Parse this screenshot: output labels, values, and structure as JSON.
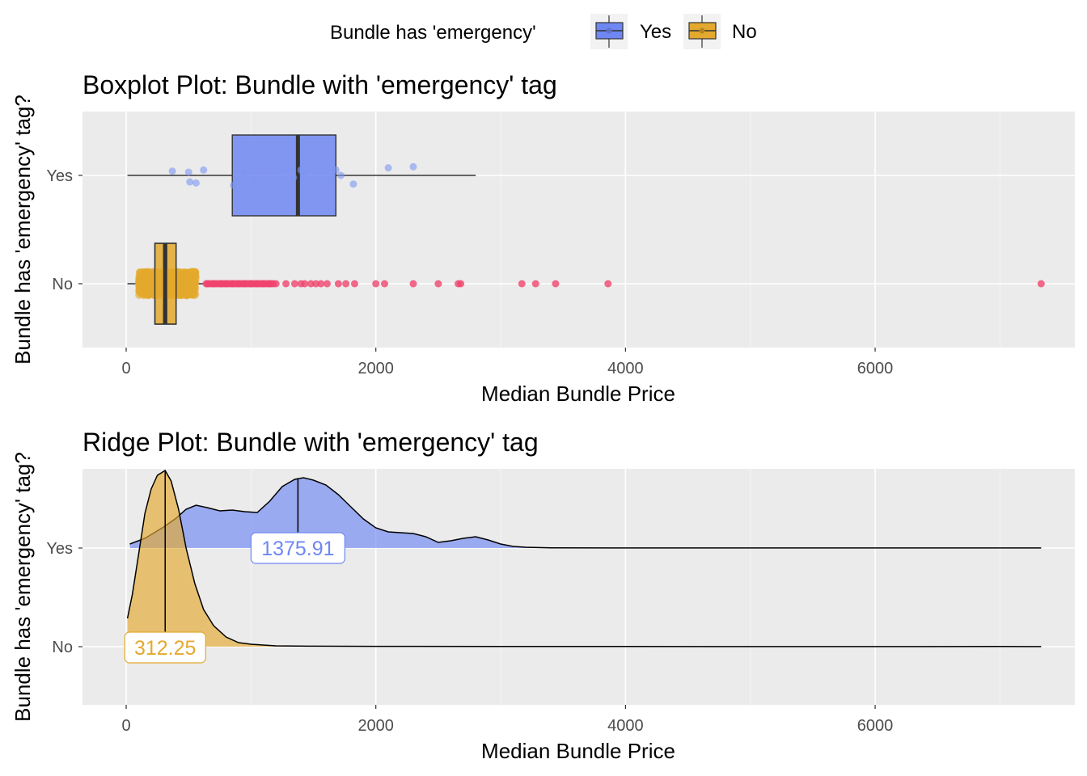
{
  "legend": {
    "title": "Bundle has 'emergency'",
    "position": "top",
    "entries": [
      {
        "label": "Yes",
        "color": "#6F87F2"
      },
      {
        "label": "No",
        "color": "#E3A92E"
      }
    ]
  },
  "colors": {
    "yes_fill": "#6F87F2",
    "no_fill": "#E3A92E",
    "yes_point": "#7D96F2",
    "no_point": "#E3A92E",
    "outlier": "#F0456D",
    "panel_bg": "#EBEBEB",
    "grid": "#FFFFFF"
  },
  "chart_data": [
    {
      "type": "boxplot",
      "title": "Boxplot Plot: Bundle with 'emergency' tag",
      "xlabel": "Median Bundle Price",
      "ylabel": "Bundle has 'emergency' tag?",
      "xlim": [
        -350,
        7600
      ],
      "x_ticks": [
        0,
        2000,
        4000,
        6000
      ],
      "x_tick_labels": [
        "0",
        "2000",
        "4000",
        "6000"
      ],
      "categories": [
        "Yes",
        "No"
      ],
      "grid": true,
      "boxes": [
        {
          "name": "Yes",
          "whisker_low": 10,
          "q1": 850,
          "median": 1375.91,
          "q3": 1680,
          "whisker_high": 2800,
          "jitter_points": [
            [
              370,
              0.04
            ],
            [
              500,
              0.03
            ],
            [
              620,
              0.05
            ],
            [
              510,
              -0.06
            ],
            [
              560,
              -0.07
            ],
            [
              860,
              -0.09
            ],
            [
              950,
              0.02
            ],
            [
              1020,
              -0.04
            ],
            [
              1250,
              0.06
            ],
            [
              1340,
              -0.02
            ],
            [
              1400,
              0.05
            ],
            [
              1420,
              0.01
            ],
            [
              1640,
              -0.05
            ],
            [
              1680,
              0.05
            ],
            [
              1720,
              0.0
            ],
            [
              1820,
              -0.08
            ],
            [
              2100,
              0.07
            ],
            [
              2300,
              0.08
            ]
          ]
        },
        {
          "name": "No",
          "whisker_low": 10,
          "q1": 230,
          "median": 312.25,
          "q3": 400,
          "whisker_high": 620,
          "outliers": [
            650,
            700,
            760,
            800,
            850,
            900,
            950,
            1000,
            1050,
            1100,
            1150,
            1200,
            1280,
            1350,
            1400,
            1430,
            1480,
            1520,
            1560,
            1610,
            1700,
            1760,
            1830,
            2000,
            2070,
            2300,
            2500,
            2660,
            2680,
            3170,
            3280,
            3440,
            3860,
            7330
          ]
        }
      ]
    },
    {
      "type": "ridge",
      "title": "Ridge Plot: Bundle with 'emergency' tag",
      "xlabel": "Median Bundle Price",
      "ylabel": "Bundle has 'emergency' tag?",
      "xlim": [
        -350,
        7600
      ],
      "x_ticks": [
        0,
        2000,
        4000,
        6000
      ],
      "x_tick_labels": [
        "0",
        "2000",
        "4000",
        "6000"
      ],
      "categories": [
        "Yes",
        "No"
      ],
      "grid": true,
      "series": [
        {
          "name": "Yes",
          "median": 1375.91,
          "median_label": "1375.91",
          "x": [
            30,
            150,
            300,
            400,
            480,
            560,
            650,
            750,
            850,
            950,
            1050,
            1150,
            1250,
            1350,
            1420,
            1500,
            1600,
            1700,
            1800,
            1900,
            2000,
            2100,
            2200,
            2300,
            2400,
            2500,
            2600,
            2700,
            2800,
            2900,
            3000,
            3100,
            3200,
            3400,
            4000,
            5000,
            6000,
            7000,
            7330
          ],
          "y": [
            0.05,
            0.12,
            0.26,
            0.37,
            0.48,
            0.53,
            0.5,
            0.46,
            0.47,
            0.45,
            0.44,
            0.58,
            0.76,
            0.85,
            0.87,
            0.84,
            0.78,
            0.66,
            0.51,
            0.36,
            0.25,
            0.2,
            0.19,
            0.18,
            0.14,
            0.07,
            0.09,
            0.12,
            0.14,
            0.1,
            0.05,
            0.02,
            0.01,
            0.003,
            0.001,
            0.001,
            0.001,
            0.001,
            0.001
          ]
        },
        {
          "name": "No",
          "median": 312.25,
          "median_label": "312.25",
          "x": [
            10,
            50,
            100,
            150,
            200,
            250,
            312,
            360,
            420,
            480,
            550,
            620,
            700,
            800,
            900,
            1000,
            1200,
            1500,
            2000,
            3000,
            4000,
            5000,
            6000,
            7000,
            7330
          ],
          "y": [
            0.35,
            0.65,
            1.15,
            1.65,
            1.95,
            2.12,
            2.18,
            2.05,
            1.7,
            1.22,
            0.78,
            0.46,
            0.26,
            0.12,
            0.05,
            0.03,
            0.01,
            0.006,
            0.004,
            0.003,
            0.002,
            0.001,
            0.001,
            0.002,
            0.001
          ]
        }
      ]
    }
  ]
}
